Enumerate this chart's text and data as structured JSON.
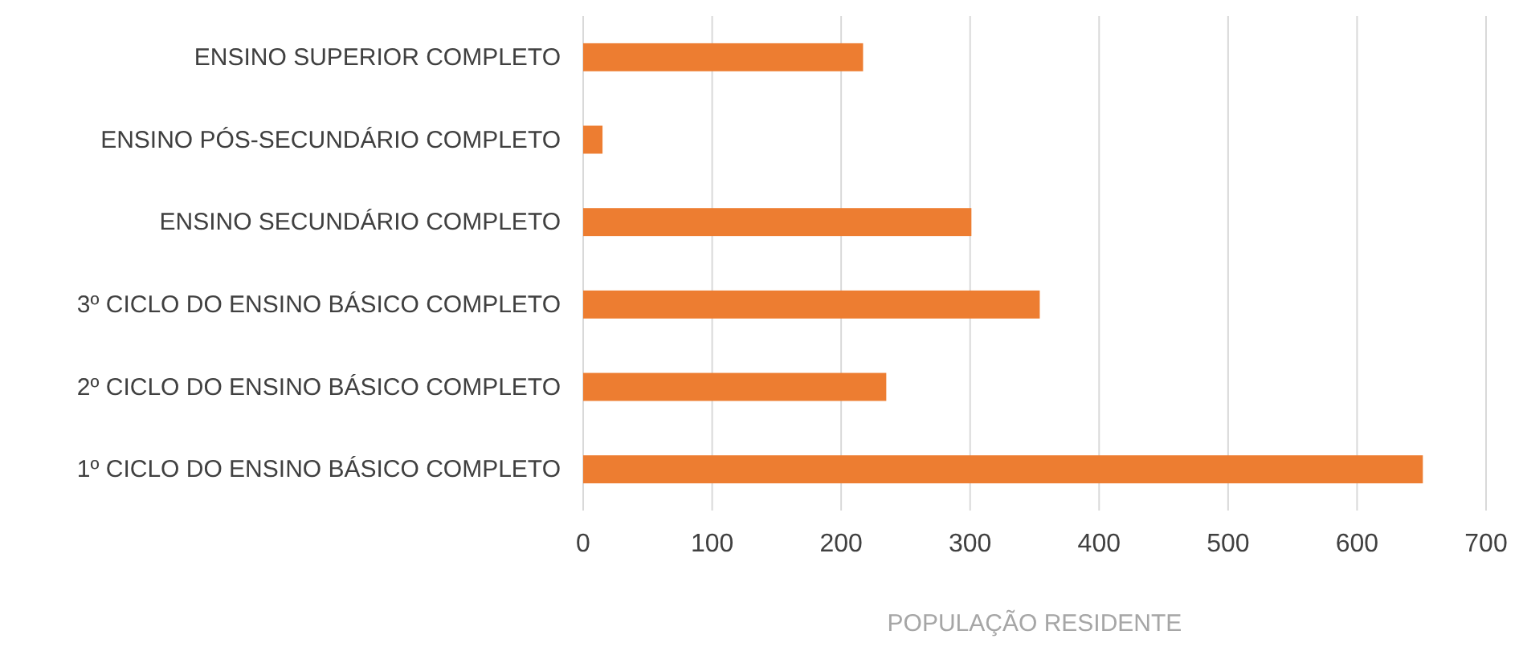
{
  "chart_data": {
    "type": "bar",
    "orientation": "horizontal",
    "xlabel": "POPULAÇÃO RESIDENTE",
    "categories": [
      "ENSINO SUPERIOR COMPLETO",
      "ENSINO PÓS-SECUNDÁRIO COMPLETO",
      "ENSINO SECUNDÁRIO COMPLETO",
      "3º CICLO DO ENSINO BÁSICO COMPLETO",
      "2º CICLO DO ENSINO BÁSICO COMPLETO",
      "1º CICLO DO ENSINO BÁSICO COMPLETO"
    ],
    "values": [
      217,
      15,
      301,
      354,
      235,
      651
    ],
    "color": "#ed7d31",
    "xlim": [
      0,
      700
    ],
    "xticks": [
      0,
      100,
      200,
      300,
      400,
      500,
      600,
      700
    ],
    "grid": "x"
  }
}
